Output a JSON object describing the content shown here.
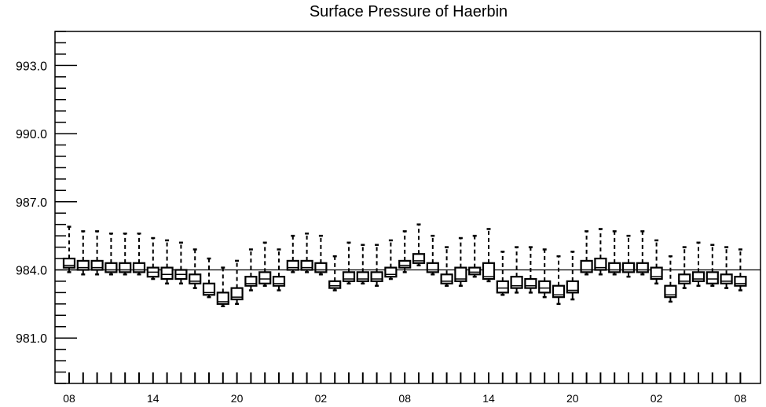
{
  "chart_data": {
    "type": "box",
    "title": "Surface Pressure of Haerbin",
    "xlabel": "",
    "ylabel": "",
    "ylim": [
      979.0,
      994.5
    ],
    "yticks": [
      "981.0",
      "984.0",
      "987.0",
      "990.0",
      "993.0"
    ],
    "ytick_values": [
      981.0,
      984.0,
      987.0,
      990.0,
      993.0
    ],
    "xtick_labels": [
      "08",
      "14",
      "20",
      "02",
      "08",
      "14",
      "20",
      "02",
      "08"
    ],
    "xtick_index": [
      0,
      6,
      12,
      18,
      24,
      30,
      36,
      42,
      48
    ],
    "grid": false,
    "reference_line": 984.0,
    "boxes": [
      {
        "x": 0,
        "min": 983.9,
        "q1": 984.1,
        "median": 984.2,
        "q3": 984.5,
        "max": 985.9
      },
      {
        "x": 1,
        "min": 983.8,
        "q1": 984.0,
        "median": 984.1,
        "q3": 984.4,
        "max": 985.7
      },
      {
        "x": 2,
        "min": 983.8,
        "q1": 984.0,
        "median": 984.1,
        "q3": 984.4,
        "max": 985.7
      },
      {
        "x": 3,
        "min": 983.8,
        "q1": 983.9,
        "median": 984.0,
        "q3": 984.3,
        "max": 985.6
      },
      {
        "x": 4,
        "min": 983.8,
        "q1": 983.9,
        "median": 984.0,
        "q3": 984.3,
        "max": 985.6
      },
      {
        "x": 5,
        "min": 983.8,
        "q1": 983.9,
        "median": 984.0,
        "q3": 984.3,
        "max": 985.6
      },
      {
        "x": 6,
        "min": 983.6,
        "q1": 983.7,
        "median": 983.9,
        "q3": 984.1,
        "max": 985.4
      },
      {
        "x": 7,
        "min": 983.4,
        "q1": 983.6,
        "median": 983.8,
        "q3": 984.1,
        "max": 985.3
      },
      {
        "x": 8,
        "min": 983.4,
        "q1": 983.6,
        "median": 983.8,
        "q3": 984.0,
        "max": 985.2
      },
      {
        "x": 9,
        "min": 983.2,
        "q1": 983.4,
        "median": 983.5,
        "q3": 983.8,
        "max": 984.9
      },
      {
        "x": 10,
        "min": 982.8,
        "q1": 982.9,
        "median": 983.0,
        "q3": 983.4,
        "max": 984.5
      },
      {
        "x": 11,
        "min": 982.4,
        "q1": 982.5,
        "median": 982.6,
        "q3": 983.0,
        "max": 984.1
      },
      {
        "x": 12,
        "min": 982.5,
        "q1": 982.7,
        "median": 982.8,
        "q3": 983.2,
        "max": 984.4
      },
      {
        "x": 13,
        "min": 983.1,
        "q1": 983.3,
        "median": 983.4,
        "q3": 983.7,
        "max": 984.9
      },
      {
        "x": 14,
        "min": 983.3,
        "q1": 983.4,
        "median": 983.6,
        "q3": 983.9,
        "max": 985.2
      },
      {
        "x": 15,
        "min": 983.1,
        "q1": 983.3,
        "median": 983.4,
        "q3": 983.7,
        "max": 984.9
      },
      {
        "x": 16,
        "min": 983.9,
        "q1": 984.0,
        "median": 984.1,
        "q3": 984.4,
        "max": 985.5
      },
      {
        "x": 17,
        "min": 983.9,
        "q1": 984.0,
        "median": 984.1,
        "q3": 984.4,
        "max": 985.6
      },
      {
        "x": 18,
        "min": 983.8,
        "q1": 983.9,
        "median": 984.0,
        "q3": 984.3,
        "max": 985.5
      },
      {
        "x": 19,
        "min": 983.1,
        "q1": 983.2,
        "median": 983.3,
        "q3": 983.5,
        "max": 984.6
      },
      {
        "x": 20,
        "min": 983.4,
        "q1": 983.5,
        "median": 983.6,
        "q3": 983.9,
        "max": 985.2
      },
      {
        "x": 21,
        "min": 983.4,
        "q1": 983.5,
        "median": 983.6,
        "q3": 983.9,
        "max": 985.1
      },
      {
        "x": 22,
        "min": 983.3,
        "q1": 983.5,
        "median": 983.6,
        "q3": 983.9,
        "max": 985.1
      },
      {
        "x": 23,
        "min": 983.6,
        "q1": 983.7,
        "median": 983.8,
        "q3": 984.1,
        "max": 985.3
      },
      {
        "x": 24,
        "min": 983.9,
        "q1": 984.1,
        "median": 984.2,
        "q3": 984.4,
        "max": 985.7
      },
      {
        "x": 25,
        "min": 984.2,
        "q1": 984.3,
        "median": 984.4,
        "q3": 984.7,
        "max": 986.0
      },
      {
        "x": 26,
        "min": 983.8,
        "q1": 983.9,
        "median": 984.0,
        "q3": 984.3,
        "max": 985.5
      },
      {
        "x": 27,
        "min": 983.3,
        "q1": 983.4,
        "median": 983.5,
        "q3": 983.8,
        "max": 985.0
      },
      {
        "x": 28,
        "min": 983.3,
        "q1": 983.5,
        "median": 983.6,
        "q3": 984.1,
        "max": 985.4
      },
      {
        "x": 29,
        "min": 983.7,
        "q1": 983.8,
        "median": 983.9,
        "q3": 984.1,
        "max": 985.5
      },
      {
        "x": 30,
        "min": 983.5,
        "q1": 983.6,
        "median": 983.7,
        "q3": 984.3,
        "max": 985.8
      },
      {
        "x": 31,
        "min": 982.9,
        "q1": 983.0,
        "median": 983.2,
        "q3": 983.5,
        "max": 984.8
      },
      {
        "x": 32,
        "min": 983.0,
        "q1": 983.2,
        "median": 983.3,
        "q3": 983.7,
        "max": 985.0
      },
      {
        "x": 33,
        "min": 983.0,
        "q1": 983.2,
        "median": 983.3,
        "q3": 983.6,
        "max": 985.0
      },
      {
        "x": 34,
        "min": 982.8,
        "q1": 983.0,
        "median": 983.2,
        "q3": 983.5,
        "max": 984.9
      },
      {
        "x": 35,
        "min": 982.5,
        "q1": 982.8,
        "median": 982.9,
        "q3": 983.3,
        "max": 984.6
      },
      {
        "x": 36,
        "min": 982.7,
        "q1": 983.0,
        "median": 983.1,
        "q3": 983.5,
        "max": 984.8
      },
      {
        "x": 37,
        "min": 983.8,
        "q1": 983.9,
        "median": 984.0,
        "q3": 984.4,
        "max": 985.7
      },
      {
        "x": 38,
        "min": 983.8,
        "q1": 984.0,
        "median": 984.1,
        "q3": 984.5,
        "max": 985.8
      },
      {
        "x": 39,
        "min": 983.8,
        "q1": 983.9,
        "median": 984.0,
        "q3": 984.3,
        "max": 985.7
      },
      {
        "x": 40,
        "min": 983.7,
        "q1": 983.9,
        "median": 984.0,
        "q3": 984.3,
        "max": 985.5
      },
      {
        "x": 41,
        "min": 983.8,
        "q1": 983.9,
        "median": 984.0,
        "q3": 984.3,
        "max": 985.7
      },
      {
        "x": 42,
        "min": 983.4,
        "q1": 983.6,
        "median": 983.7,
        "q3": 984.1,
        "max": 985.3
      },
      {
        "x": 43,
        "min": 982.6,
        "q1": 982.8,
        "median": 982.9,
        "q3": 983.3,
        "max": 984.6
      },
      {
        "x": 44,
        "min": 983.2,
        "q1": 983.4,
        "median": 983.5,
        "q3": 983.8,
        "max": 985.0
      },
      {
        "x": 45,
        "min": 983.3,
        "q1": 983.5,
        "median": 983.6,
        "q3": 983.9,
        "max": 985.2
      },
      {
        "x": 46,
        "min": 983.3,
        "q1": 983.4,
        "median": 983.6,
        "q3": 983.9,
        "max": 985.1
      },
      {
        "x": 47,
        "min": 983.2,
        "q1": 983.4,
        "median": 983.5,
        "q3": 983.8,
        "max": 985.0
      },
      {
        "x": 48,
        "min": 983.1,
        "q1": 983.3,
        "median": 983.4,
        "q3": 983.7,
        "max": 984.9
      }
    ]
  }
}
